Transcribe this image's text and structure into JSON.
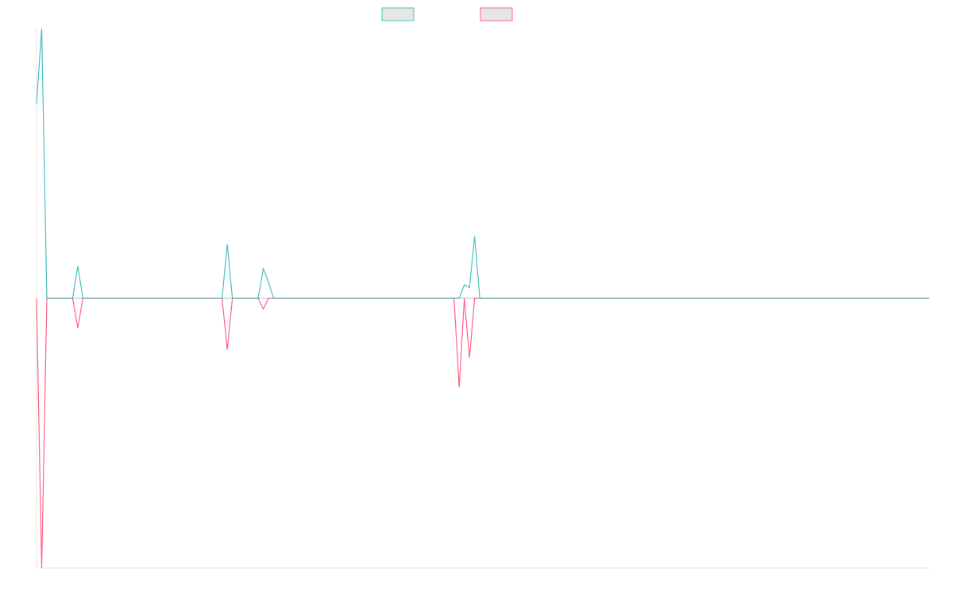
{
  "chart_data": {
    "type": "line",
    "title": "",
    "xlabel": "",
    "ylabel": "",
    "grid": false,
    "legend_placement": "top-center",
    "ylim": [
      -100,
      100
    ],
    "series": [
      {
        "color": "#4bc0c0",
        "values": [
          72,
          100,
          0,
          0,
          0,
          0,
          0,
          0,
          12,
          0,
          0,
          0,
          0,
          0,
          0,
          0,
          0,
          0,
          0,
          0,
          0,
          0,
          0,
          0,
          0,
          0,
          0,
          0,
          0,
          0,
          0,
          0,
          0,
          0,
          0,
          0,
          0,
          20,
          0,
          0,
          0,
          0,
          0,
          0,
          11,
          6,
          0,
          0,
          0,
          0,
          0,
          0,
          0,
          0,
          0,
          0,
          0,
          0,
          0,
          0,
          0,
          0,
          0,
          0,
          0,
          0,
          0,
          0,
          0,
          0,
          0,
          0,
          0,
          0,
          0,
          0,
          0,
          0,
          0,
          0,
          0,
          0,
          0,
          5,
          4,
          23,
          0
        ]
      },
      {
        "color": "#ff6384",
        "values": [
          0,
          -100,
          0,
          0,
          0,
          0,
          0,
          0,
          -11,
          0,
          0,
          0,
          0,
          0,
          0,
          0,
          0,
          0,
          0,
          0,
          0,
          0,
          0,
          0,
          0,
          0,
          0,
          0,
          0,
          0,
          0,
          0,
          0,
          0,
          0,
          0,
          0,
          -19,
          0,
          0,
          0,
          0,
          0,
          0,
          -4,
          0,
          0,
          0,
          0,
          0,
          0,
          0,
          0,
          0,
          0,
          0,
          0,
          0,
          0,
          0,
          0,
          0,
          0,
          0,
          0,
          0,
          0,
          0,
          0,
          0,
          0,
          0,
          0,
          0,
          0,
          0,
          0,
          0,
          0,
          0,
          0,
          0,
          -33,
          0,
          -22,
          0,
          0
        ]
      }
    ]
  }
}
